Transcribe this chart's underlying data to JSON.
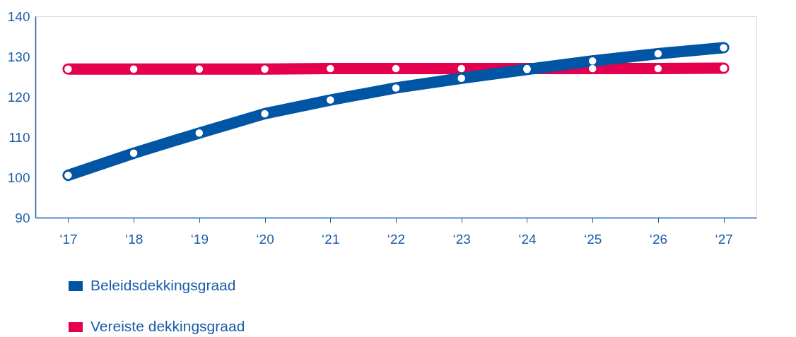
{
  "chart_data": {
    "type": "line",
    "categories": [
      "‘17",
      "‘18",
      "‘19",
      "‘20",
      "‘21",
      "‘22",
      "‘23",
      "‘24",
      "‘25",
      "‘26",
      "‘27"
    ],
    "series": [
      {
        "name": "Beleidsdekkingsgraad",
        "color": "#0055a4",
        "values": [
          100.5,
          106,
          111,
          115.8,
          119.2,
          122.2,
          124.6,
          126.8,
          128.9,
          130.7,
          132.2
        ]
      },
      {
        "name": "Vereiste dekkingsgraad",
        "color": "#e4004f",
        "values": [
          126.9,
          126.9,
          126.9,
          126.9,
          127,
          127,
          127,
          127,
          127,
          127,
          127.1
        ]
      }
    ],
    "ylim": [
      90,
      140
    ],
    "yticks": [
      90,
      100,
      110,
      120,
      130,
      140
    ],
    "grid": false,
    "legend": "bottom left",
    "marker": "circle",
    "line_style": "solid"
  }
}
